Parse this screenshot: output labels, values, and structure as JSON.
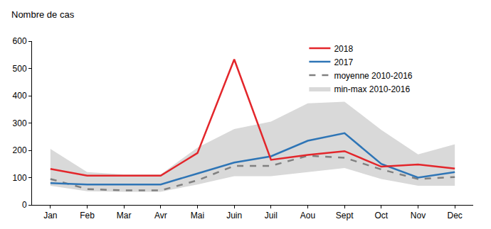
{
  "chart_data": {
    "type": "line",
    "y_label": "Nombre de cas",
    "categories": [
      "Jan",
      "Feb",
      "Mar",
      "Avr",
      "Mai",
      "Juin",
      "Juil",
      "Aou",
      "Sept",
      "Oct",
      "Nov",
      "Dec"
    ],
    "series": [
      {
        "name": "min-max 2010-2016",
        "type": "band",
        "color": "#d9d9d9",
        "low": [
          70,
          50,
          48,
          48,
          75,
          105,
          105,
          120,
          135,
          95,
          70,
          70
        ],
        "high": [
          205,
          120,
          112,
          112,
          210,
          278,
          305,
          372,
          378,
          275,
          185,
          222
        ]
      },
      {
        "name": "moyenne 2010-2016",
        "color": "#808080",
        "line_style": "dash",
        "values": [
          95,
          58,
          53,
          53,
          90,
          143,
          143,
          180,
          173,
          130,
          95,
          102
        ]
      },
      {
        "name": "2017",
        "color": "#2e75b6",
        "line_style": "solid",
        "values": [
          80,
          75,
          75,
          75,
          115,
          155,
          178,
          235,
          263,
          150,
          100,
          120
        ]
      },
      {
        "name": "2018",
        "color": "#e3262b",
        "line_style": "solid",
        "values": [
          132,
          107,
          107,
          107,
          190,
          533,
          165,
          183,
          197,
          140,
          148,
          133
        ]
      }
    ],
    "ylim": [
      0,
      600
    ],
    "yticks": [
      0,
      100,
      200,
      300,
      400,
      500,
      600
    ],
    "grid": false,
    "legend": "top right"
  }
}
